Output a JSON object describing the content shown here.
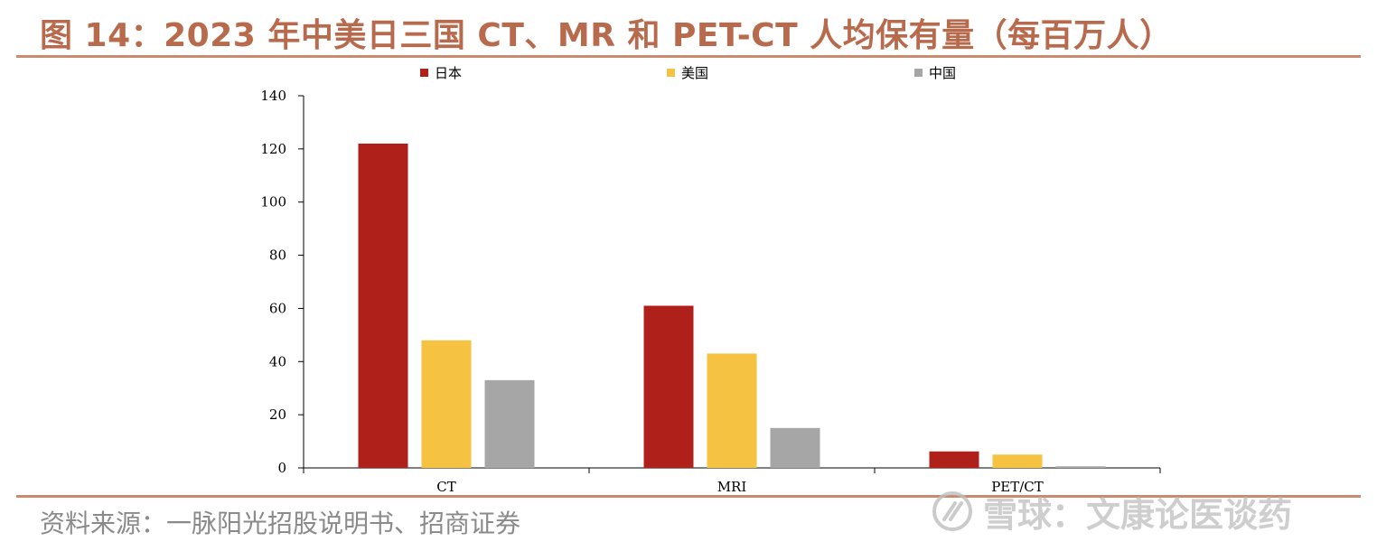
{
  "title": "图 14：2023 年中美日三国 CT、MR 和 PET-CT 人均保有量（每百万人）",
  "source": "资料来源：一脉阳光招股说明书、招商证券",
  "watermark": {
    "icon": "snowball-logo-icon",
    "text": "雪球：文康论医谈药"
  },
  "colors": {
    "title": "#b86a4d",
    "rule": "#c98a6e"
  },
  "chart_data": {
    "type": "bar",
    "categories": [
      "CT",
      "MRI",
      "PET/CT"
    ],
    "series": [
      {
        "name": "日本",
        "values": [
          122,
          61,
          6.2
        ],
        "color": "#b0201a"
      },
      {
        "name": "美国",
        "values": [
          48,
          43,
          5
        ],
        "color": "#f5c242"
      },
      {
        "name": "中国",
        "values": [
          33,
          15,
          0.6
        ],
        "color": "#a6a6a6"
      }
    ],
    "ylim": [
      0,
      140
    ],
    "yticks": [
      0,
      20,
      40,
      60,
      80,
      100,
      120,
      140
    ],
    "legend_position": "top",
    "grid": false
  }
}
